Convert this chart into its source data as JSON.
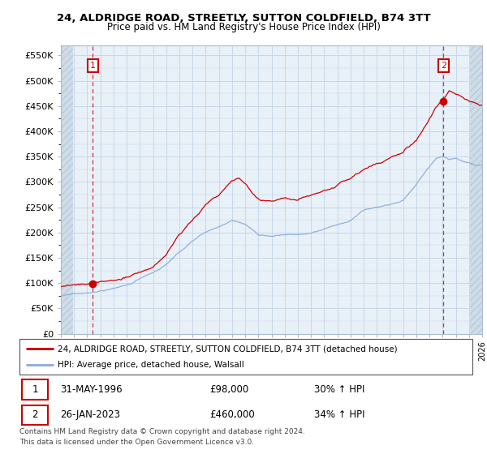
{
  "title": "24, ALDRIDGE ROAD, STREETLY, SUTTON COLDFIELD, B74 3TT",
  "subtitle": "Price paid vs. HM Land Registry's House Price Index (HPI)",
  "ylim": [
    0,
    570000
  ],
  "yticks": [
    0,
    50000,
    100000,
    150000,
    200000,
    250000,
    300000,
    350000,
    400000,
    450000,
    500000,
    550000
  ],
  "ytick_labels": [
    "£0",
    "£50K",
    "£100K",
    "£150K",
    "£200K",
    "£250K",
    "£300K",
    "£350K",
    "£400K",
    "£450K",
    "£500K",
    "£550K"
  ],
  "sale1_year": 1996.42,
  "sale1_price": 98000,
  "sale2_year": 2023.07,
  "sale2_price": 460000,
  "line1_color": "#cc0000",
  "line2_color": "#88aadd",
  "marker_color": "#cc0000",
  "grid_color": "#c8d8e8",
  "plot_bg": "#e8f0f8",
  "hatch_bg": "#d0dce8",
  "legend_line1": "24, ALDRIDGE ROAD, STREETLY, SUTTON COLDFIELD, B74 3TT (detached house)",
  "legend_line2": "HPI: Average price, detached house, Walsall",
  "sale1_row": "31-MAY-1996",
  "sale1_price_str": "£98,000",
  "sale1_hpi": "30% ↑ HPI",
  "sale2_row": "26-JAN-2023",
  "sale2_price_str": "£460,000",
  "sale2_hpi": "34% ↑ HPI",
  "footer": "Contains HM Land Registry data © Crown copyright and database right 2024.\nThis data is licensed under the Open Government Licence v3.0.",
  "xstart": 1994.0,
  "xend": 2026.0
}
